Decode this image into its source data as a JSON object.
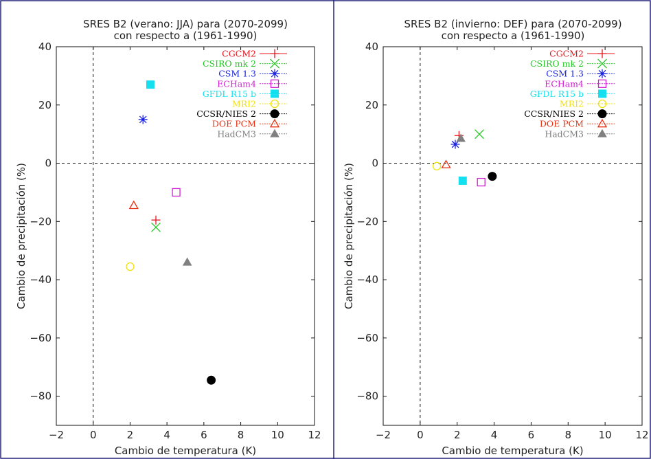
{
  "chart_data": [
    {
      "type": "scatter",
      "title": "SRES B2 (verano: JJA) para (2070-2099)",
      "subtitle": "con respecto a (1961-1990)",
      "xlabel": "Cambio de temperatura (K)",
      "ylabel": "Cambio de precipitación (%)",
      "xlim": [
        -2,
        12
      ],
      "ylim": [
        -90,
        40
      ],
      "xticks": [
        -2,
        0,
        2,
        4,
        6,
        8,
        10,
        12
      ],
      "yticks": [
        -80,
        -60,
        -40,
        -20,
        0,
        20,
        40
      ],
      "reference_lines": {
        "x": 0,
        "y": 0,
        "style": "dashed"
      },
      "legend_position": "top-right",
      "series": [
        {
          "name": "CGCM2",
          "marker": "plus",
          "color": "#e8141c",
          "x": 3.4,
          "y": -19.5
        },
        {
          "name": "CSIRO mk 2",
          "marker": "x",
          "color": "#22c822",
          "x": 3.4,
          "y": -22
        },
        {
          "name": "CSM 1.3",
          "marker": "star",
          "color": "#1a22e0",
          "x": 2.7,
          "y": 15
        },
        {
          "name": "ECHam4",
          "marker": "square-open",
          "color": "#d020d0",
          "x": 4.5,
          "y": -10
        },
        {
          "name": "GFDL R15 b",
          "marker": "square-filled",
          "color": "#14e0f0",
          "x": 3.1,
          "y": 27
        },
        {
          "name": "MRI2",
          "marker": "circle-open",
          "color": "#f0e010",
          "x": 2.0,
          "y": -35.5
        },
        {
          "name": "CCSR/NIES 2",
          "marker": "circle-filled",
          "color": "#000000",
          "x": 6.4,
          "y": -74.5
        },
        {
          "name": "DOE PCM",
          "marker": "triangle-open",
          "color": "#e83010",
          "x": 2.2,
          "y": -14.5
        },
        {
          "name": "HadCM3",
          "marker": "triangle-filled",
          "color": "#808080",
          "x": 5.1,
          "y": -34
        }
      ]
    },
    {
      "type": "scatter",
      "title": "SRES B2 (invierno: DEF) para (2070-2099)",
      "subtitle": "con respecto a (1961-1990)",
      "xlabel": "Cambio de temperatura (K)",
      "ylabel": "Cambio de precipitación (%)",
      "xlim": [
        -2,
        12
      ],
      "ylim": [
        -90,
        40
      ],
      "xticks": [
        -2,
        0,
        2,
        4,
        6,
        8,
        10,
        12
      ],
      "yticks": [
        -80,
        -60,
        -40,
        -20,
        0,
        20,
        40
      ],
      "reference_lines": {
        "x": 0,
        "y": 0,
        "style": "dashed"
      },
      "legend_position": "top-right",
      "series": [
        {
          "name": "CGCM2",
          "marker": "plus",
          "color": "#e8141c",
          "x": 2.1,
          "y": 9.5
        },
        {
          "name": "CSIRO mk 2",
          "marker": "x",
          "color": "#22c822",
          "x": 3.2,
          "y": 10
        },
        {
          "name": "CSM 1.3",
          "marker": "star",
          "color": "#1a22e0",
          "x": 1.9,
          "y": 6.5
        },
        {
          "name": "ECHam4",
          "marker": "square-open",
          "color": "#d020d0",
          "x": 3.3,
          "y": -6.5
        },
        {
          "name": "GFDL R15 b",
          "marker": "square-filled",
          "color": "#14e0f0",
          "x": 2.3,
          "y": -6
        },
        {
          "name": "MRI2",
          "marker": "circle-open",
          "color": "#f0e010",
          "x": 0.9,
          "y": -1
        },
        {
          "name": "CCSR/NIES 2",
          "marker": "circle-filled",
          "color": "#000000",
          "x": 3.9,
          "y": -4.5
        },
        {
          "name": "DOE PCM",
          "marker": "triangle-open",
          "color": "#e83010",
          "x": 1.4,
          "y": -0.5
        },
        {
          "name": "HadCM3",
          "marker": "triangle-filled",
          "color": "#808080",
          "x": 2.2,
          "y": 8.5
        }
      ]
    }
  ],
  "frame_color": "#22227a"
}
